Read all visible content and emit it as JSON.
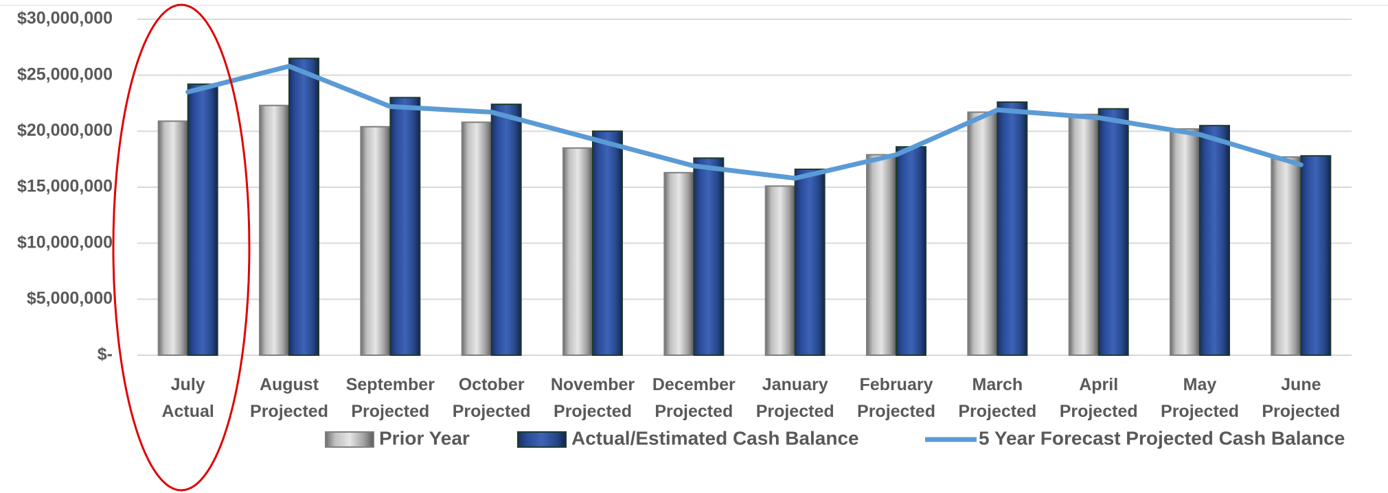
{
  "chart_data": {
    "type": "bar_line",
    "categories": [
      "July Actual",
      "August Projected",
      "September Projected",
      "October Projected",
      "November Projected",
      "December Projected",
      "January Projected",
      "February Projected",
      "March Projected",
      "April Projected",
      "May Projected",
      "June Projected"
    ],
    "series": [
      {
        "name": "Prior Year",
        "type": "bar",
        "color": "#a6a6a6",
        "values": [
          20900000,
          22300000,
          20400000,
          20800000,
          18500000,
          16300000,
          15100000,
          17900000,
          21700000,
          21500000,
          20200000,
          17700000
        ]
      },
      {
        "name": "Actual/Estimated Cash Balance",
        "type": "bar",
        "color": "#2f52a0",
        "values": [
          24200000,
          26500000,
          23000000,
          22400000,
          20000000,
          17600000,
          16600000,
          18600000,
          22600000,
          22000000,
          20500000,
          17800000
        ]
      },
      {
        "name": "5 Year Forecast Projected Cash Balance",
        "type": "line",
        "color": "#5b9bd5",
        "values": [
          23500000,
          25800000,
          22200000,
          21700000,
          19300000,
          16900000,
          15800000,
          17900000,
          21900000,
          21200000,
          19700000,
          17000000
        ]
      }
    ],
    "ylim": [
      0,
      30000000
    ],
    "yticks": [
      {
        "value": 0,
        "label": "$-"
      },
      {
        "value": 5000000,
        "label": "$5,000,000"
      },
      {
        "value": 10000000,
        "label": "$10,000,000"
      },
      {
        "value": 15000000,
        "label": "$15,000,000"
      },
      {
        "value": 20000000,
        "label": "$20,000,000"
      },
      {
        "value": 25000000,
        "label": "$25,000,000"
      },
      {
        "value": 30000000,
        "label": "$30,000,000"
      }
    ],
    "grid": true,
    "legend": "bottom"
  }
}
